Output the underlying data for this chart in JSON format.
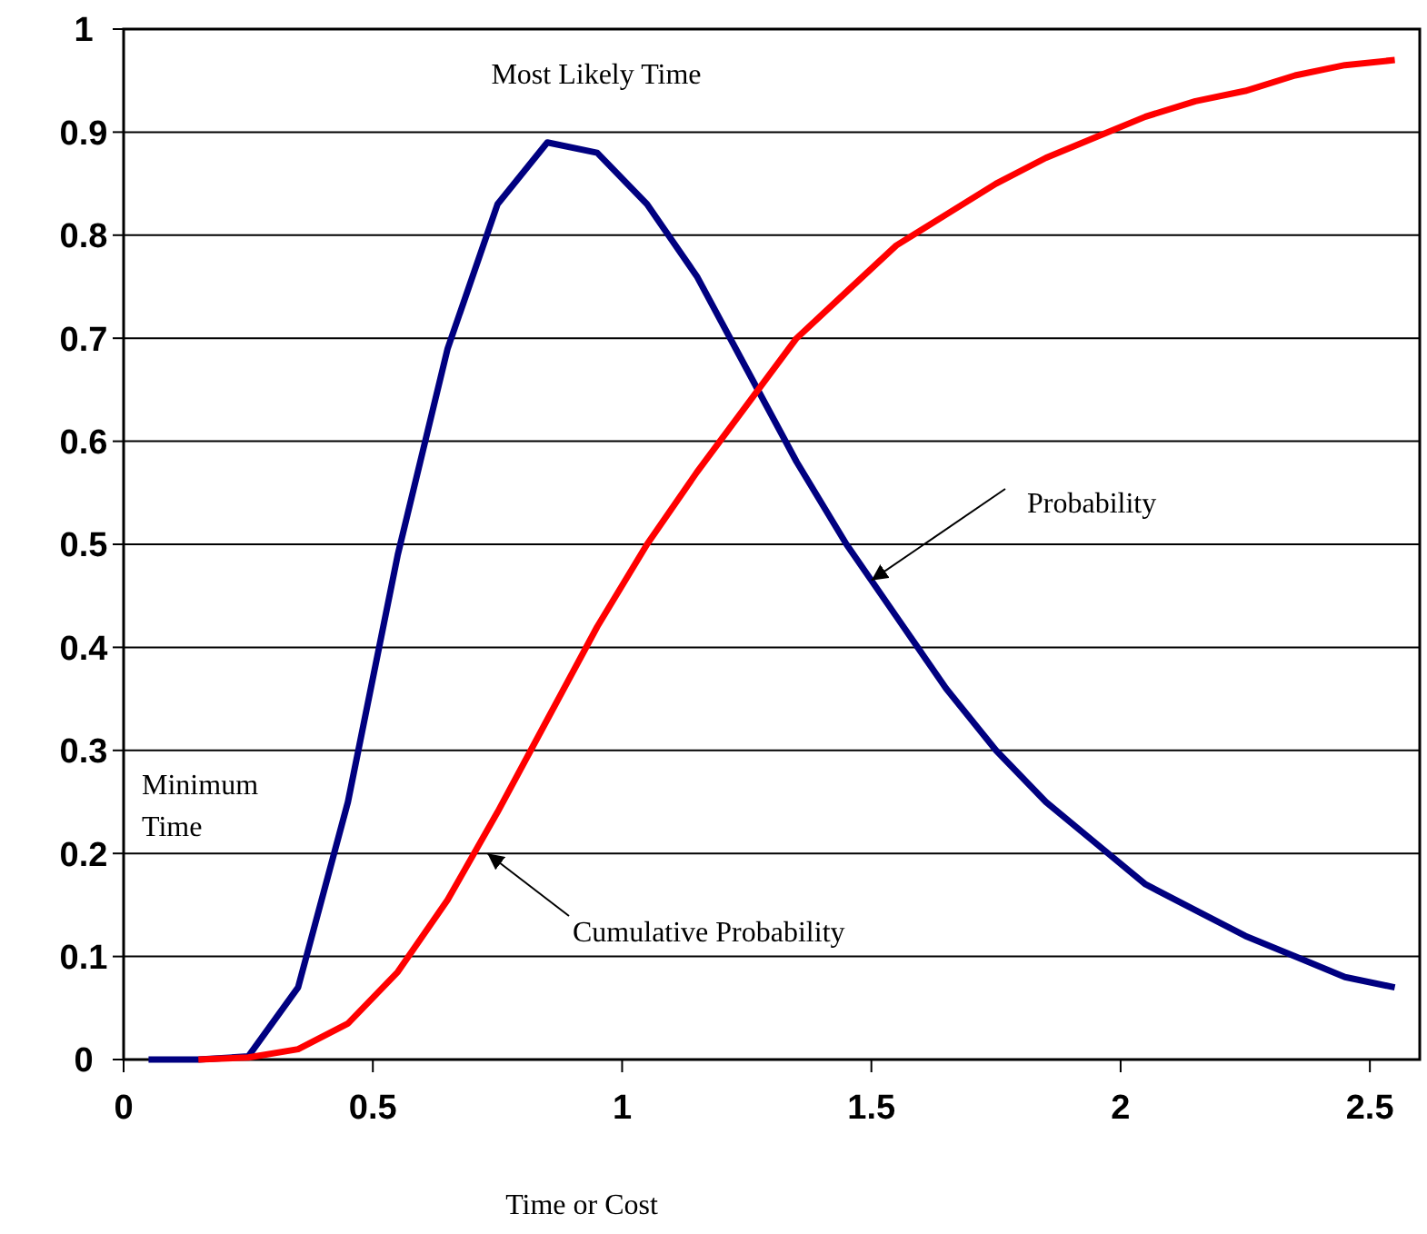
{
  "chart_data": {
    "type": "line",
    "xlabel": "Time or Cost",
    "x": [
      0.05,
      0.15,
      0.25,
      0.35,
      0.45,
      0.55,
      0.65,
      0.75,
      0.85,
      0.95,
      1.05,
      1.15,
      1.25,
      1.35,
      1.45,
      1.55,
      1.65,
      1.75,
      1.85,
      1.95,
      2.05,
      2.15,
      2.25,
      2.35,
      2.45,
      2.55
    ],
    "series": [
      {
        "color": "#000080",
        "values": [
          0,
          0,
          0.003,
          0.07,
          0.25,
          0.49,
          0.69,
          0.83,
          0.89,
          0.88,
          0.83,
          0.76,
          0.67,
          0.58,
          0.5,
          0.43,
          0.36,
          0.3,
          0.25,
          0.21,
          0.17,
          0.145,
          0.12,
          0.1,
          0.08,
          0.07
        ]
      },
      {
        "color": "#ff0000",
        "values": [
          null,
          0,
          0.002,
          0.01,
          0.035,
          0.085,
          0.155,
          0.24,
          0.33,
          0.42,
          0.5,
          0.57,
          0.635,
          0.7,
          0.745,
          0.79,
          0.82,
          0.85,
          0.875,
          0.895,
          0.915,
          0.93,
          0.94,
          0.955,
          0.965,
          0.97
        ]
      }
    ],
    "xlim": [
      0,
      2.6
    ],
    "xticks": [
      0,
      0.5,
      1,
      1.5,
      2,
      2.5
    ],
    "ylim": [
      0,
      1
    ],
    "yticks": [
      0,
      0.1,
      0.2,
      0.3,
      0.4,
      0.5,
      0.6,
      0.7,
      0.8,
      0.9,
      1
    ],
    "grid": "y",
    "marker": "none",
    "line_style": "solid",
    "annotations": [
      "Most Likely Time",
      {
        "text": "Probability",
        "x": 1.5,
        "y": 0.465
      },
      "Minimum Time",
      {
        "text": "Cumulative Probability",
        "x": 0.73,
        "y": 0.2
      }
    ]
  }
}
